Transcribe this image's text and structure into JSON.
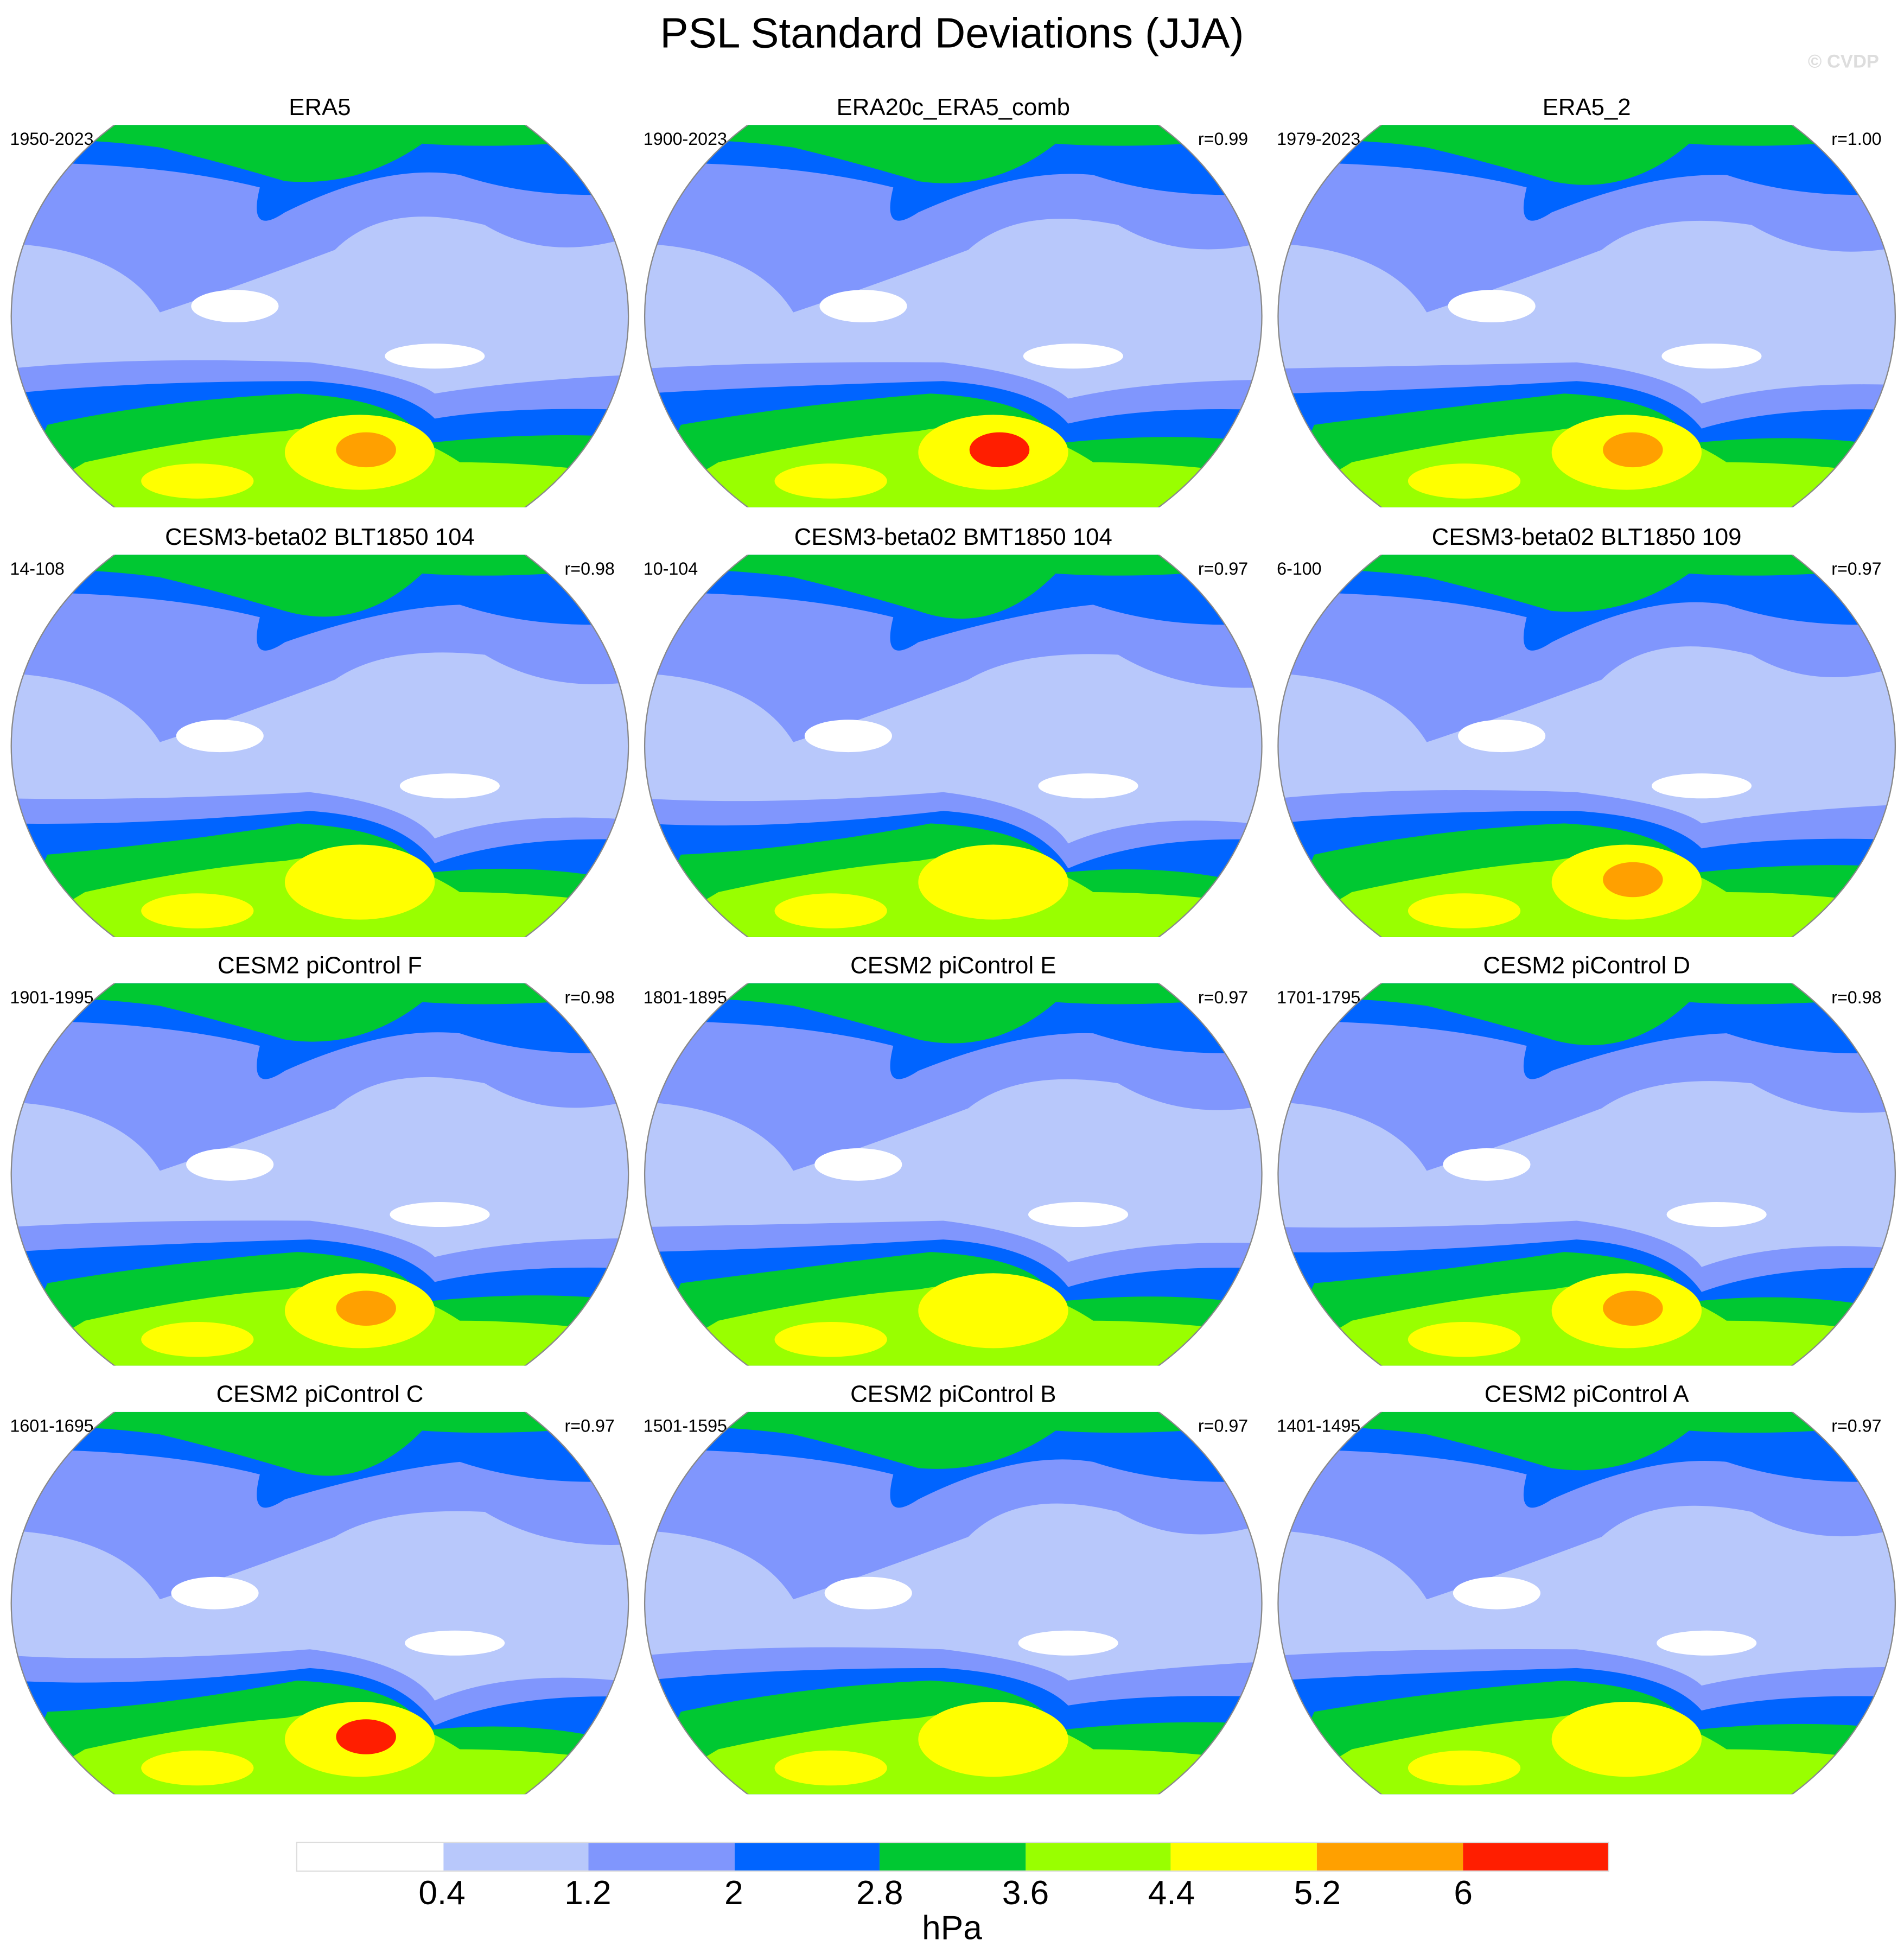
{
  "title": "PSL Standard Deviations (JJA)",
  "watermark": "© CVDP",
  "chart_data": {
    "type": "heatmap",
    "title": "PSL Standard Deviations (JJA)",
    "projection": "Robinson global map",
    "colorbar": {
      "levels": [
        "0.4",
        "1.2",
        "2",
        "2.8",
        "3.6",
        "4.4",
        "5.2",
        "6"
      ],
      "colors": [
        "#ffffff",
        "#b8c8fb",
        "#8096fd",
        "#0064ff",
        "#00c832",
        "#99ff00",
        "#ffff00",
        "#ffa000",
        "#ff1e00"
      ],
      "unit": "hPa"
    },
    "panels": [
      {
        "title": "ERA5",
        "period": "1950-2023",
        "r": "",
        "max_color": "#ffa000"
      },
      {
        "title": "ERA20c_ERA5_comb",
        "period": "1900-2023",
        "r": "r=0.99",
        "max_color": "#ff1e00"
      },
      {
        "title": "ERA5_2",
        "period": "1979-2023",
        "r": "r=1.00",
        "max_color": "#ffa000"
      },
      {
        "title": "CESM3-beta02 BLT1850 104",
        "period": "14-108",
        "r": "r=0.98",
        "max_color": "#ffff00"
      },
      {
        "title": "CESM3-beta02 BMT1850 104",
        "period": "10-104",
        "r": "r=0.97",
        "max_color": "#ffff00"
      },
      {
        "title": "CESM3-beta02 BLT1850 109",
        "period": "6-100",
        "r": "r=0.97",
        "max_color": "#ffa000"
      },
      {
        "title": "CESM2 piControl F",
        "period": "1901-1995",
        "r": "r=0.98",
        "max_color": "#ffa000"
      },
      {
        "title": "CESM2 piControl E",
        "period": "1801-1895",
        "r": "r=0.97",
        "max_color": "#ffff00"
      },
      {
        "title": "CESM2 piControl D",
        "period": "1701-1795",
        "r": "r=0.98",
        "max_color": "#ffa000"
      },
      {
        "title": "CESM2 piControl C",
        "period": "1601-1695",
        "r": "r=0.97",
        "max_color": "#ff1e00"
      },
      {
        "title": "CESM2 piControl B",
        "period": "1501-1595",
        "r": "r=0.97",
        "max_color": "#ffff00"
      },
      {
        "title": "CESM2 piControl A",
        "period": "1401-1495",
        "r": "r=0.97",
        "max_color": "#ffff00"
      }
    ]
  }
}
